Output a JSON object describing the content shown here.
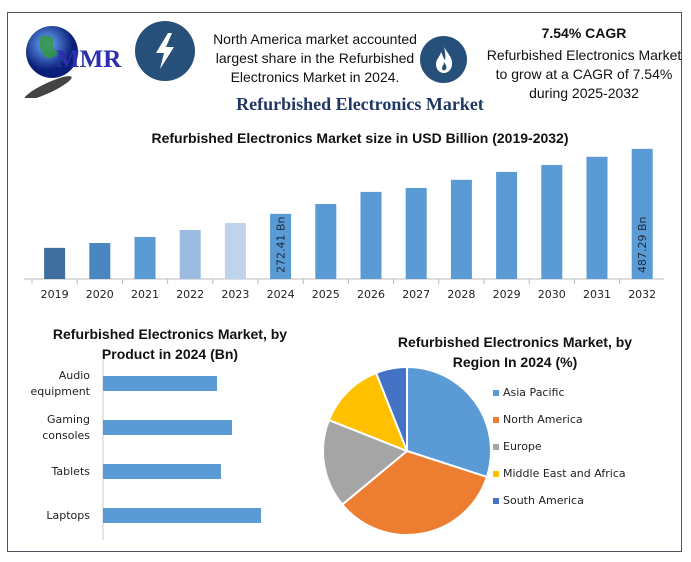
{
  "header": {
    "logo_text": "MMR",
    "icon_left": "lightning-icon",
    "icon_right": "flame-icon",
    "fact_left": [
      "North America market accounted",
      "largest share in the Refurbished",
      "Electronics Market in 2024."
    ],
    "cagr_title": "7.54% CAGR",
    "fact_right": [
      "Refurbished Electronics Market",
      "to grow at a CAGR of 7.54%",
      "during 2025-2032"
    ],
    "main_title": "Refurbished Electronics Market"
  },
  "colors": {
    "accent": "#26507a",
    "bar": "#5b9bd5"
  },
  "chart_data": [
    {
      "type": "bar",
      "title": "Refurbished Electronics Market size in USD Billion (2019-2032)",
      "categories": [
        "2019",
        "2020",
        "2021",
        "2022",
        "2023",
        "2024",
        "2025",
        "2026",
        "2027",
        "2028",
        "2029",
        "2030",
        "2031",
        "2032"
      ],
      "values": [
        160,
        176,
        196,
        219,
        242,
        272.41,
        305,
        345,
        358,
        385,
        411,
        434,
        461,
        487.29
      ],
      "colors": [
        "#3e6e9c",
        "#4a86bf",
        "#5b9bd5",
        "#9bbbe0",
        "#bfd3ec",
        "#5b9bd5",
        "#5b9bd5",
        "#5b9bd5",
        "#5b9bd5",
        "#5b9bd5",
        "#5b9bd5",
        "#5b9bd5",
        "#5b9bd5",
        "#5b9bd5"
      ],
      "data_labels": {
        "2024": "272.41 Bn",
        "2032": "487.29 Bn"
      },
      "xlabel": "",
      "ylabel": "",
      "ylim": [
        57,
        500
      ],
      "grid": false
    },
    {
      "type": "bar",
      "orientation": "horizontal",
      "title": [
        "Refurbished Electronics Market, by",
        "Product in 2024 (Bn)"
      ],
      "categories": [
        [
          "Audio",
          "equipment"
        ],
        [
          "Gaming",
          "consoles"
        ],
        [
          "Tablets"
        ],
        [
          "Laptops"
        ]
      ],
      "values": [
        57,
        64.5,
        59,
        79
      ],
      "xlim": [
        0,
        80
      ]
    },
    {
      "type": "pie",
      "title": [
        "Refurbished Electronics Market, by",
        "Region In 2024 (%)"
      ],
      "labels": [
        "Asia Pacific",
        "North America",
        "Europe",
        "Middle East and Africa",
        "South America"
      ],
      "values": [
        30,
        34,
        17,
        13,
        6
      ],
      "colors": [
        "#5b9bd5",
        "#ed7d31",
        "#a5a5a5",
        "#ffc000",
        "#4472c4"
      ],
      "legend": "right"
    }
  ]
}
